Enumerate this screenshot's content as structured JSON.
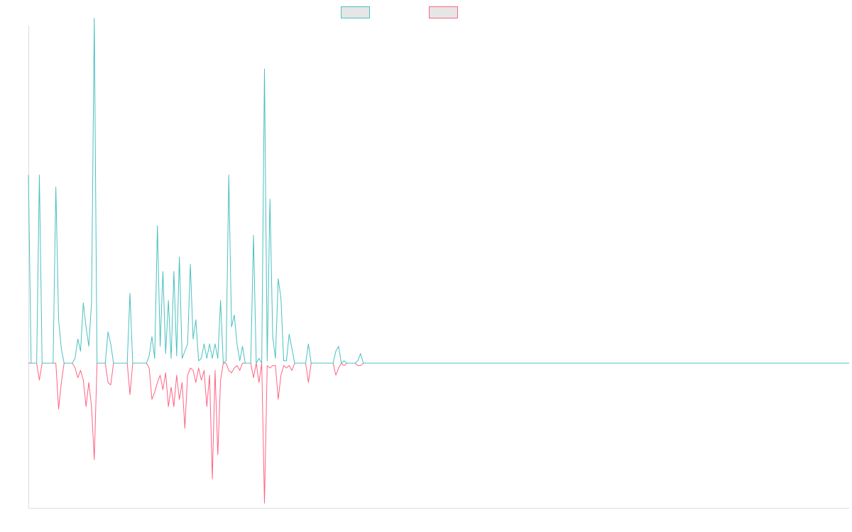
{
  "chart_data": {
    "type": "line",
    "title": "",
    "xlabel": "",
    "ylabel": "",
    "grid": false,
    "legend_position": "top-center",
    "x_count": 300,
    "ylim": [
      -0.6,
      1.4
    ],
    "series": [
      {
        "color": "#4bc0c0",
        "points": [
          [
            0,
            0.78
          ],
          [
            4,
            0.78
          ],
          [
            10,
            0.73
          ],
          [
            11,
            0.18
          ],
          [
            12,
            0.06
          ],
          [
            17,
            0.02
          ],
          [
            18,
            0.1
          ],
          [
            19,
            0.05
          ],
          [
            20,
            0.25
          ],
          [
            21,
            0.15
          ],
          [
            22,
            0.07
          ],
          [
            23,
            0.25
          ],
          [
            24,
            1.43
          ],
          [
            29,
            0.13
          ],
          [
            30,
            0.08
          ],
          [
            37,
            0.29
          ],
          [
            44,
            0.03
          ],
          [
            45,
            0.11
          ],
          [
            46,
            0.02
          ],
          [
            47,
            0.57
          ],
          [
            48,
            0.07
          ],
          [
            49,
            0.38
          ],
          [
            50,
            0.04
          ],
          [
            51,
            0.26
          ],
          [
            52,
            0.02
          ],
          [
            53,
            0.38
          ],
          [
            54,
            0.03
          ],
          [
            55,
            0.44
          ],
          [
            56,
            0.02
          ],
          [
            57,
            0.05
          ],
          [
            58,
            0.08
          ],
          [
            59,
            0.41
          ],
          [
            60,
            0.1
          ],
          [
            61,
            0.18
          ],
          [
            62,
            0.01
          ],
          [
            63,
            0.02
          ],
          [
            64,
            0.08
          ],
          [
            65,
            0.02
          ],
          [
            66,
            0.08
          ],
          [
            67,
            0.02
          ],
          [
            68,
            0.08
          ],
          [
            69,
            0.02
          ],
          [
            70,
            0.26
          ],
          [
            72,
            0.01
          ],
          [
            73,
            0.78
          ],
          [
            74,
            0.15
          ],
          [
            75,
            0.2
          ],
          [
            76,
            0.08
          ],
          [
            77,
            0.01
          ],
          [
            78,
            0.07
          ],
          [
            82,
            0.53
          ],
          [
            84,
            0.02
          ],
          [
            86,
            1.22
          ],
          [
            87,
            0.01
          ],
          [
            88,
            0.68
          ],
          [
            89,
            0.11
          ],
          [
            90,
            0.02
          ],
          [
            91,
            0.35
          ],
          [
            92,
            0.27
          ],
          [
            93,
            0.01
          ],
          [
            94,
            0.01
          ],
          [
            95,
            0.12
          ],
          [
            96,
            0.06
          ],
          [
            102,
            0.08
          ],
          [
            112,
            0.05
          ],
          [
            113,
            0.07
          ],
          [
            115,
            0.01
          ],
          [
            120,
            0.01
          ],
          [
            121,
            0.04
          ]
        ]
      },
      {
        "color": "#ff6384",
        "points": [
          [
            4,
            -0.07
          ],
          [
            11,
            -0.19
          ],
          [
            12,
            -0.08
          ],
          [
            17,
            -0.02
          ],
          [
            18,
            -0.06
          ],
          [
            19,
            -0.03
          ],
          [
            20,
            -0.07
          ],
          [
            21,
            -0.18
          ],
          [
            22,
            -0.08
          ],
          [
            23,
            -0.18
          ],
          [
            24,
            -0.4
          ],
          [
            29,
            -0.08
          ],
          [
            30,
            -0.09
          ],
          [
            37,
            -0.13
          ],
          [
            44,
            -0.02
          ],
          [
            45,
            -0.15
          ],
          [
            46,
            -0.12
          ],
          [
            47,
            -0.08
          ],
          [
            48,
            -0.05
          ],
          [
            49,
            -0.11
          ],
          [
            50,
            -0.04
          ],
          [
            51,
            -0.18
          ],
          [
            52,
            -0.1
          ],
          [
            53,
            -0.18
          ],
          [
            54,
            -0.05
          ],
          [
            55,
            -0.15
          ],
          [
            56,
            -0.08
          ],
          [
            57,
            -0.27
          ],
          [
            58,
            -0.05
          ],
          [
            59,
            -0.02
          ],
          [
            60,
            -0.03
          ],
          [
            61,
            -0.08
          ],
          [
            62,
            -0.02
          ],
          [
            63,
            -0.07
          ],
          [
            64,
            -0.03
          ],
          [
            65,
            -0.18
          ],
          [
            66,
            -0.05
          ],
          [
            67,
            -0.48
          ],
          [
            68,
            -0.03
          ],
          [
            69,
            -0.38
          ],
          [
            70,
            -0.07
          ],
          [
            73,
            -0.03
          ],
          [
            74,
            -0.04
          ],
          [
            75,
            -0.02
          ],
          [
            76,
            -0.01
          ],
          [
            77,
            -0.03
          ],
          [
            82,
            -0.06
          ],
          [
            84,
            -0.08
          ],
          [
            86,
            -0.58
          ],
          [
            87,
            -0.01
          ],
          [
            88,
            -0.02
          ],
          [
            89,
            -0.01
          ],
          [
            90,
            -0.01
          ],
          [
            91,
            -0.15
          ],
          [
            92,
            -0.05
          ],
          [
            93,
            -0.01
          ],
          [
            94,
            -0.02
          ],
          [
            95,
            -0.01
          ],
          [
            96,
            -0.03
          ],
          [
            102,
            -0.08
          ],
          [
            112,
            -0.05
          ],
          [
            113,
            -0.02
          ],
          [
            115,
            -0.01
          ],
          [
            120,
            -0.01
          ],
          [
            121,
            -0.01
          ]
        ]
      }
    ]
  }
}
